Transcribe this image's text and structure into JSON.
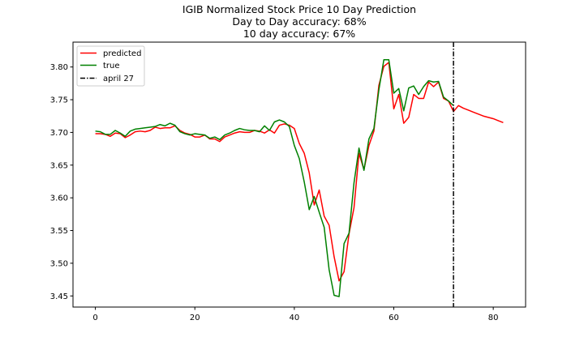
{
  "chart_data": {
    "type": "line",
    "title_lines": [
      "IGIB Normalized Stock Price 10 Day Prediction",
      "Day to Day accuracy: 68%",
      "10 day accuracy: 67%"
    ],
    "xlabel": "",
    "ylabel": "",
    "xlim": [
      -4.5,
      86.5
    ],
    "ylim": [
      3.433,
      3.838
    ],
    "x_ticks": [
      0,
      20,
      40,
      60,
      80
    ],
    "y_ticks": [
      3.45,
      3.5,
      3.55,
      3.6,
      3.65,
      3.7,
      3.75,
      3.8
    ],
    "y_tick_labels": [
      "3.45",
      "3.50",
      "3.55",
      "3.60",
      "3.65",
      "3.70",
      "3.75",
      "3.80"
    ],
    "grid": false,
    "legend_position": "top-left",
    "legend": [
      {
        "label": "predicted",
        "color": "#ff0000",
        "style": "solid"
      },
      {
        "label": "true",
        "color": "#008000",
        "style": "solid"
      },
      {
        "label": "april 27",
        "color": "#000000",
        "style": "dashdot"
      }
    ],
    "series": [
      {
        "name": "predicted",
        "color": "#ff0000",
        "x": [
          0,
          1,
          2,
          3,
          4,
          5,
          6,
          7,
          8,
          9,
          10,
          11,
          12,
          13,
          14,
          15,
          16,
          17,
          18,
          19,
          20,
          21,
          22,
          23,
          24,
          25,
          26,
          27,
          28,
          29,
          30,
          31,
          32,
          33,
          34,
          35,
          36,
          37,
          38,
          39,
          40,
          41,
          42,
          43,
          44,
          45,
          46,
          47,
          48,
          49,
          50,
          51,
          52,
          53,
          54,
          55,
          56,
          57,
          58,
          59,
          60,
          61,
          62,
          63,
          64,
          65,
          66,
          67,
          68,
          69,
          70,
          71,
          72,
          73,
          74,
          75,
          76,
          77,
          78,
          79,
          80,
          81,
          82
        ],
        "values": [
          3.698,
          3.698,
          3.697,
          3.694,
          3.699,
          3.698,
          3.692,
          3.696,
          3.701,
          3.702,
          3.701,
          3.703,
          3.708,
          3.706,
          3.707,
          3.707,
          3.71,
          3.703,
          3.699,
          3.697,
          3.693,
          3.693,
          3.696,
          3.69,
          3.69,
          3.686,
          3.693,
          3.696,
          3.699,
          3.701,
          3.7,
          3.7,
          3.703,
          3.702,
          3.699,
          3.704,
          3.699,
          3.711,
          3.713,
          3.711,
          3.706,
          3.683,
          3.668,
          3.638,
          3.589,
          3.612,
          3.572,
          3.558,
          3.51,
          3.473,
          3.487,
          3.545,
          3.585,
          3.668,
          3.643,
          3.68,
          3.702,
          3.772,
          3.801,
          3.807,
          3.736,
          3.758,
          3.714,
          3.723,
          3.758,
          3.752,
          3.752,
          3.777,
          3.77,
          3.777,
          3.752,
          3.748,
          3.732,
          3.741,
          3.737,
          3.734,
          3.731,
          3.728,
          3.725,
          3.723,
          3.721,
          3.718,
          3.715
        ]
      },
      {
        "name": "true",
        "color": "#008000",
        "x": [
          0,
          1,
          2,
          3,
          4,
          5,
          6,
          7,
          8,
          9,
          10,
          11,
          12,
          13,
          14,
          15,
          16,
          17,
          18,
          19,
          20,
          21,
          22,
          23,
          24,
          25,
          26,
          27,
          28,
          29,
          30,
          31,
          32,
          33,
          34,
          35,
          36,
          37,
          38,
          39,
          40,
          41,
          42,
          43,
          44,
          45,
          46,
          47,
          48,
          49,
          50,
          51,
          52,
          53,
          54,
          55,
          56,
          57,
          58,
          59,
          60,
          61,
          62,
          63,
          64,
          65,
          66,
          67,
          68,
          69,
          70,
          71,
          72
        ],
        "values": [
          3.702,
          3.701,
          3.697,
          3.697,
          3.703,
          3.699,
          3.694,
          3.702,
          3.705,
          3.706,
          3.707,
          3.708,
          3.709,
          3.712,
          3.71,
          3.714,
          3.711,
          3.701,
          3.698,
          3.696,
          3.698,
          3.697,
          3.696,
          3.691,
          3.693,
          3.689,
          3.696,
          3.699,
          3.703,
          3.706,
          3.704,
          3.703,
          3.703,
          3.701,
          3.71,
          3.703,
          3.716,
          3.719,
          3.716,
          3.709,
          3.68,
          3.66,
          3.624,
          3.582,
          3.602,
          3.578,
          3.555,
          3.49,
          3.451,
          3.449,
          3.53,
          3.546,
          3.623,
          3.676,
          3.642,
          3.69,
          3.706,
          3.765,
          3.811,
          3.811,
          3.76,
          3.767,
          3.733,
          3.768,
          3.771,
          3.758,
          3.77,
          3.779,
          3.777,
          3.778,
          3.754,
          3.748,
          3.741
        ]
      }
    ],
    "vline": {
      "label": "april 27",
      "x": 72,
      "color": "#000000",
      "style": "dashdot"
    }
  }
}
